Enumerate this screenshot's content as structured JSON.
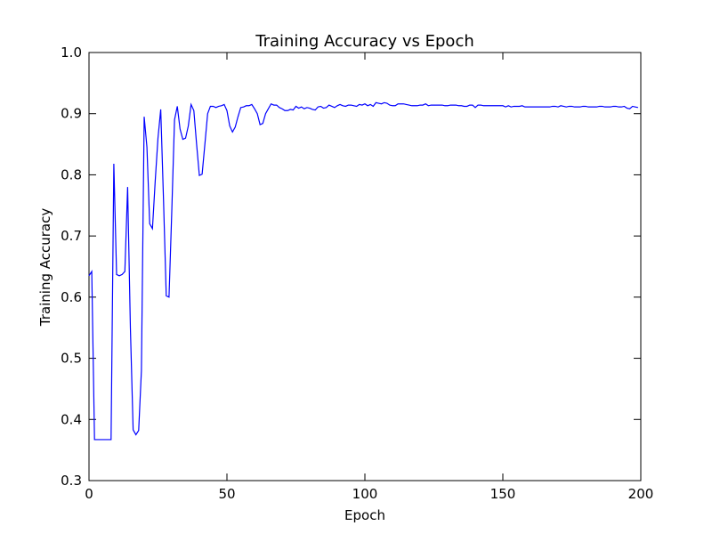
{
  "chart_data": {
    "type": "line",
    "title": "Training Accuracy vs Epoch",
    "x_label": "Epoch",
    "y_label": "Training Accuracy",
    "xlim": [
      0,
      200
    ],
    "xticks": [
      0,
      50,
      100,
      150,
      200
    ],
    "ylim": [
      0.3,
      1
    ],
    "yticks": [
      0.3,
      0.4,
      0.5,
      0.6,
      0.7,
      0.8,
      0.9,
      {
        "value": 1,
        "label": "1.0"
      }
    ],
    "grid": false,
    "x": [
      0,
      1,
      2,
      3,
      4,
      5,
      6,
      7,
      8,
      9,
      10,
      11,
      12,
      13,
      14,
      15,
      16,
      17,
      18,
      19,
      20,
      21,
      22,
      23,
      24,
      25,
      26,
      27,
      28,
      29,
      30,
      31,
      32,
      33,
      34,
      35,
      36,
      37,
      38,
      39,
      40,
      41,
      42,
      43,
      44,
      45,
      46,
      47,
      48,
      49,
      50,
      51,
      52,
      53,
      54,
      55,
      56,
      57,
      58,
      59,
      60,
      61,
      62,
      63,
      64,
      65,
      66,
      67,
      68,
      69,
      70,
      71,
      72,
      73,
      74,
      75,
      76,
      77,
      78,
      79,
      80,
      81,
      82,
      83,
      84,
      85,
      86,
      87,
      88,
      89,
      90,
      91,
      92,
      93,
      94,
      95,
      96,
      97,
      98,
      99,
      100,
      101,
      102,
      103,
      104,
      105,
      106,
      107,
      108,
      109,
      110,
      111,
      112,
      113,
      114,
      115,
      116,
      117,
      118,
      119,
      120,
      121,
      122,
      123,
      124,
      125,
      126,
      127,
      128,
      129,
      130,
      131,
      132,
      133,
      134,
      135,
      136,
      137,
      138,
      139,
      140,
      141,
      142,
      143,
      144,
      145,
      146,
      147,
      148,
      149,
      150,
      151,
      152,
      153,
      154,
      155,
      156,
      157,
      158,
      159,
      160,
      161,
      162,
      163,
      164,
      165,
      166,
      167,
      168,
      169,
      170,
      171,
      172,
      173,
      174,
      175,
      176,
      177,
      178,
      179,
      180,
      181,
      182,
      183,
      184,
      185,
      186,
      187,
      188,
      189,
      190,
      191,
      192,
      193,
      194,
      195,
      196,
      197,
      198,
      199
    ],
    "series": [
      {
        "name": "Training Accuracy",
        "color": "#0000ff",
        "values": [
          0.635,
          0.642,
          0.367,
          0.367,
          0.367,
          0.367,
          0.367,
          0.367,
          0.367,
          0.818,
          0.637,
          0.635,
          0.637,
          0.642,
          0.78,
          0.55,
          0.383,
          0.375,
          0.382,
          0.48,
          0.895,
          0.845,
          0.72,
          0.712,
          0.79,
          0.86,
          0.907,
          0.76,
          0.602,
          0.6,
          0.74,
          0.89,
          0.912,
          0.875,
          0.858,
          0.86,
          0.88,
          0.915,
          0.905,
          0.85,
          0.799,
          0.801,
          0.85,
          0.9,
          0.912,
          0.912,
          0.91,
          0.912,
          0.913,
          0.915,
          0.905,
          0.88,
          0.87,
          0.878,
          0.895,
          0.91,
          0.911,
          0.913,
          0.913,
          0.915,
          0.908,
          0.9,
          0.882,
          0.884,
          0.9,
          0.908,
          0.916,
          0.914,
          0.914,
          0.91,
          0.908,
          0.905,
          0.905,
          0.907,
          0.906,
          0.912,
          0.909,
          0.911,
          0.908,
          0.91,
          0.909,
          0.907,
          0.906,
          0.911,
          0.912,
          0.909,
          0.91,
          0.914,
          0.912,
          0.91,
          0.913,
          0.915,
          0.913,
          0.912,
          0.914,
          0.914,
          0.913,
          0.912,
          0.915,
          0.914,
          0.916,
          0.913,
          0.915,
          0.912,
          0.918,
          0.917,
          0.916,
          0.918,
          0.917,
          0.914,
          0.913,
          0.913,
          0.916,
          0.916,
          0.916,
          0.915,
          0.914,
          0.913,
          0.913,
          0.913,
          0.914,
          0.914,
          0.916,
          0.913,
          0.914,
          0.914,
          0.914,
          0.914,
          0.914,
          0.913,
          0.913,
          0.914,
          0.914,
          0.914,
          0.913,
          0.913,
          0.912,
          0.912,
          0.914,
          0.914,
          0.91,
          0.914,
          0.914,
          0.913,
          0.913,
          0.913,
          0.913,
          0.913,
          0.913,
          0.913,
          0.913,
          0.911,
          0.913,
          0.911,
          0.912,
          0.912,
          0.912,
          0.913,
          0.911,
          0.911,
          0.911,
          0.911,
          0.911,
          0.911,
          0.911,
          0.911,
          0.911,
          0.911,
          0.912,
          0.912,
          0.911,
          0.913,
          0.912,
          0.911,
          0.912,
          0.912,
          0.911,
          0.911,
          0.911,
          0.912,
          0.912,
          0.911,
          0.911,
          0.911,
          0.911,
          0.912,
          0.912,
          0.911,
          0.911,
          0.911,
          0.912,
          0.912,
          0.911,
          0.911,
          0.912,
          0.909,
          0.908,
          0.912,
          0.911,
          0.91
        ]
      }
    ]
  }
}
